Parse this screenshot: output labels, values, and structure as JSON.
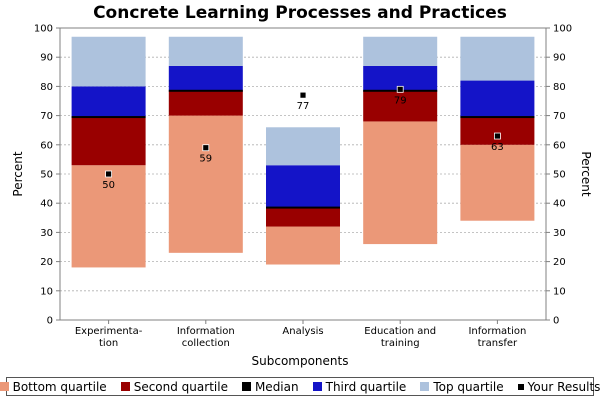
{
  "chart_data": {
    "type": "bar",
    "title": "Concrete Learning Processes and Practices",
    "xlabel": "Subcomponents",
    "ylabel": "Percent",
    "ylabel_right": "Percent",
    "ylim": [
      0,
      100
    ],
    "yticks": [
      0,
      10,
      20,
      30,
      40,
      50,
      60,
      70,
      80,
      90,
      100
    ],
    "grid": true,
    "legend_placement": "bottom",
    "categories": [
      [
        "Experimenta-",
        "tion"
      ],
      [
        "Information",
        "collection"
      ],
      [
        "Analysis"
      ],
      [
        "Education and",
        "training"
      ],
      [
        "Information",
        "transfer"
      ]
    ],
    "boxes": [
      {
        "min": 18,
        "q1": 53,
        "median": 69.5,
        "q3": 80,
        "max": 97,
        "result": 50,
        "result_label": "50"
      },
      {
        "min": 23,
        "q1": 70,
        "median": 78.5,
        "q3": 87,
        "max": 97,
        "result": 59,
        "result_label": "59"
      },
      {
        "min": 19,
        "q1": 32,
        "median": 38.5,
        "q3": 53,
        "max": 66,
        "result": 77,
        "result_label": "77"
      },
      {
        "min": 26,
        "q1": 68,
        "median": 78.5,
        "q3": 87,
        "max": 97,
        "result": 79,
        "result_label": "79"
      },
      {
        "min": 34,
        "q1": 60,
        "median": 69.5,
        "q3": 82,
        "max": 97,
        "result": 63,
        "result_label": "63"
      }
    ],
    "legend": [
      {
        "key": "bottom",
        "label": "Bottom quartile",
        "color": "#eb9878"
      },
      {
        "key": "second",
        "label": "Second quartile",
        "color": "#990000"
      },
      {
        "key": "median",
        "label": "Median",
        "color": "#000000"
      },
      {
        "key": "third",
        "label": "Third quartile",
        "color": "#1414c8"
      },
      {
        "key": "top",
        "label": "Top quartile",
        "color": "#adc2dd"
      },
      {
        "key": "result",
        "label": "Your Results",
        "color": "#000000"
      }
    ]
  }
}
